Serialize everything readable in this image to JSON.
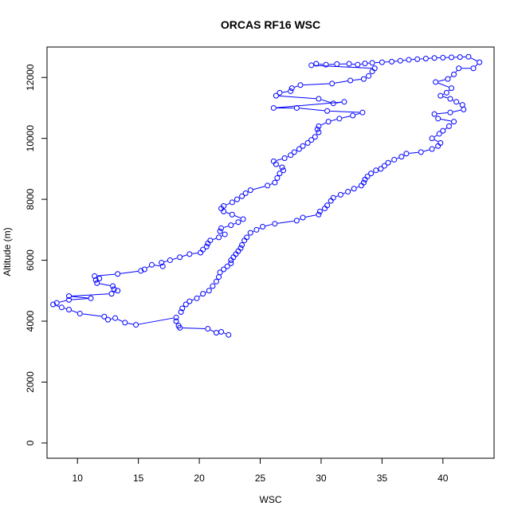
{
  "chart_data": {
    "type": "scatter",
    "title": "ORCAS RF16 WSC",
    "xlabel": "WSC",
    "ylabel": "Altitude (m)",
    "xlim": [
      7.5,
      44.2
    ],
    "ylim": [
      -500,
      13000
    ],
    "xticks": [
      10,
      15,
      20,
      25,
      30,
      35,
      40
    ],
    "yticks": [
      0,
      2000,
      4000,
      6000,
      8000,
      10000,
      12000
    ],
    "grid": false,
    "legend": "none",
    "marker": "open-circle",
    "connected": true,
    "color": "#0000ff",
    "series": [
      {
        "points": [
          [
            22.4,
            3550
          ],
          [
            21.8,
            3650
          ],
          [
            21.4,
            3620
          ],
          [
            20.7,
            3750
          ],
          [
            18.4,
            3780
          ],
          [
            18.3,
            3850
          ],
          [
            18.1,
            4000
          ],
          [
            18.1,
            4120
          ],
          [
            14.8,
            3880
          ],
          [
            13.9,
            3950
          ],
          [
            13.1,
            4100
          ],
          [
            12.5,
            4050
          ],
          [
            12.2,
            4150
          ],
          [
            10.2,
            4250
          ],
          [
            9.3,
            4380
          ],
          [
            8.7,
            4450
          ],
          [
            8.0,
            4550
          ],
          [
            8.3,
            4600
          ],
          [
            9.3,
            4700
          ],
          [
            11.1,
            4750
          ],
          [
            9.3,
            4820
          ],
          [
            12.8,
            4900
          ],
          [
            13.3,
            5000
          ],
          [
            13.0,
            5050
          ],
          [
            12.9,
            5150
          ],
          [
            11.6,
            5250
          ],
          [
            11.5,
            5350
          ],
          [
            11.8,
            5400
          ],
          [
            11.4,
            5480
          ],
          [
            13.3,
            5550
          ],
          [
            15.2,
            5650
          ],
          [
            15.5,
            5700
          ],
          [
            16.1,
            5850
          ],
          [
            17.0,
            5800
          ],
          [
            16.9,
            5920
          ],
          [
            17.6,
            6000
          ],
          [
            18.4,
            6100
          ],
          [
            19.2,
            6200
          ],
          [
            20.1,
            6250
          ],
          [
            20.3,
            6350
          ],
          [
            20.6,
            6450
          ],
          [
            20.7,
            6550
          ],
          [
            20.9,
            6650
          ],
          [
            21.6,
            6750
          ],
          [
            22.1,
            6850
          ],
          [
            21.7,
            6950
          ],
          [
            21.8,
            7050
          ],
          [
            22.6,
            7150
          ],
          [
            23.2,
            7250
          ],
          [
            23.6,
            7350
          ],
          [
            22.7,
            7500
          ],
          [
            22.0,
            7600
          ],
          [
            21.8,
            7700
          ],
          [
            22.0,
            7780
          ],
          [
            22.7,
            7900
          ],
          [
            23.1,
            8000
          ],
          [
            23.5,
            8100
          ],
          [
            23.8,
            8200
          ],
          [
            24.2,
            8300
          ],
          [
            25.6,
            8450
          ],
          [
            26.2,
            8550
          ],
          [
            26.4,
            8700
          ],
          [
            26.6,
            8850
          ],
          [
            26.9,
            8950
          ],
          [
            26.8,
            9050
          ],
          [
            26.3,
            9150
          ],
          [
            26.1,
            9250
          ],
          [
            27.0,
            9350
          ],
          [
            27.5,
            9450
          ],
          [
            27.8,
            9550
          ],
          [
            28.2,
            9650
          ],
          [
            28.5,
            9750
          ],
          [
            28.9,
            9850
          ],
          [
            29.2,
            9950
          ],
          [
            29.5,
            10050
          ],
          [
            29.8,
            10200
          ],
          [
            29.7,
            10300
          ],
          [
            29.8,
            10400
          ],
          [
            30.6,
            10550
          ],
          [
            31.5,
            10650
          ],
          [
            32.6,
            10750
          ],
          [
            33.4,
            10850
          ],
          [
            30.5,
            10900
          ],
          [
            28.0,
            11000
          ],
          [
            26.1,
            11000
          ],
          [
            31.9,
            11200
          ],
          [
            31.0,
            11150
          ],
          [
            29.8,
            11300
          ],
          [
            26.3,
            11400
          ],
          [
            26.6,
            11500
          ],
          [
            27.5,
            11550
          ],
          [
            27.6,
            11650
          ],
          [
            28.3,
            11750
          ],
          [
            30.9,
            11800
          ],
          [
            32.4,
            11900
          ],
          [
            33.5,
            11950
          ],
          [
            33.9,
            12050
          ],
          [
            34.2,
            12200
          ],
          [
            34.4,
            12300
          ],
          [
            29.2,
            12400
          ],
          [
            29.6,
            12450
          ],
          [
            30.4,
            12420
          ],
          [
            31.3,
            12440
          ],
          [
            32.3,
            12450
          ],
          [
            33.0,
            12420
          ],
          [
            33.6,
            12460
          ],
          [
            34.2,
            12480
          ],
          [
            35.0,
            12500
          ],
          [
            35.8,
            12520
          ],
          [
            36.5,
            12550
          ],
          [
            37.2,
            12580
          ],
          [
            37.9,
            12600
          ],
          [
            38.6,
            12620
          ],
          [
            39.3,
            12640
          ],
          [
            40.0,
            12650
          ],
          [
            40.7,
            12660
          ],
          [
            41.4,
            12670
          ],
          [
            42.1,
            12680
          ],
          [
            43.0,
            12500
          ],
          [
            42.5,
            12300
          ],
          [
            41.3,
            12300
          ],
          [
            40.9,
            12100
          ],
          [
            40.4,
            11950
          ],
          [
            39.4,
            11850
          ],
          [
            40.7,
            11650
          ],
          [
            40.3,
            11500
          ],
          [
            39.8,
            11400
          ],
          [
            40.6,
            11300
          ],
          [
            41.1,
            11200
          ],
          [
            41.6,
            11100
          ],
          [
            41.7,
            10950
          ],
          [
            40.6,
            10850
          ],
          [
            39.3,
            10800
          ],
          [
            39.6,
            10650
          ],
          [
            40.9,
            10550
          ],
          [
            40.5,
            10400
          ],
          [
            40.0,
            10250
          ],
          [
            39.7,
            10150
          ],
          [
            39.1,
            10000
          ],
          [
            39.8,
            9850
          ],
          [
            39.6,
            9750
          ],
          [
            39.1,
            9650
          ],
          [
            38.2,
            9550
          ],
          [
            37.0,
            9500
          ],
          [
            36.6,
            9400
          ],
          [
            36.0,
            9300
          ],
          [
            35.5,
            9200
          ],
          [
            35.2,
            9100
          ],
          [
            34.9,
            9000
          ],
          [
            34.5,
            8950
          ],
          [
            34.1,
            8850
          ],
          [
            33.8,
            8750
          ],
          [
            33.6,
            8650
          ],
          [
            33.5,
            8550
          ],
          [
            33.3,
            8450
          ],
          [
            32.7,
            8350
          ],
          [
            32.2,
            8250
          ],
          [
            31.6,
            8150
          ],
          [
            31.0,
            8050
          ],
          [
            30.8,
            7950
          ],
          [
            30.5,
            7800
          ],
          [
            30.3,
            7700
          ],
          [
            29.9,
            7600
          ],
          [
            29.8,
            7500
          ],
          [
            28.5,
            7400
          ],
          [
            28.0,
            7300
          ],
          [
            26.2,
            7200
          ],
          [
            25.2,
            7100
          ],
          [
            24.7,
            7000
          ],
          [
            24.2,
            6900
          ],
          [
            23.9,
            6750
          ],
          [
            23.7,
            6650
          ],
          [
            23.5,
            6500
          ],
          [
            23.4,
            6400
          ],
          [
            23.2,
            6300
          ],
          [
            23.0,
            6200
          ],
          [
            22.8,
            6100
          ],
          [
            22.6,
            6000
          ],
          [
            22.6,
            5900
          ],
          [
            22.3,
            5800
          ],
          [
            22.0,
            5700
          ],
          [
            21.7,
            5600
          ],
          [
            21.6,
            5450
          ],
          [
            21.4,
            5300
          ],
          [
            21.1,
            5150
          ],
          [
            20.8,
            5000
          ],
          [
            20.3,
            4900
          ],
          [
            19.8,
            4750
          ],
          [
            19.2,
            4650
          ],
          [
            18.9,
            4550
          ],
          [
            18.6,
            4420
          ],
          [
            18.5,
            4300
          ]
        ]
      }
    ]
  }
}
